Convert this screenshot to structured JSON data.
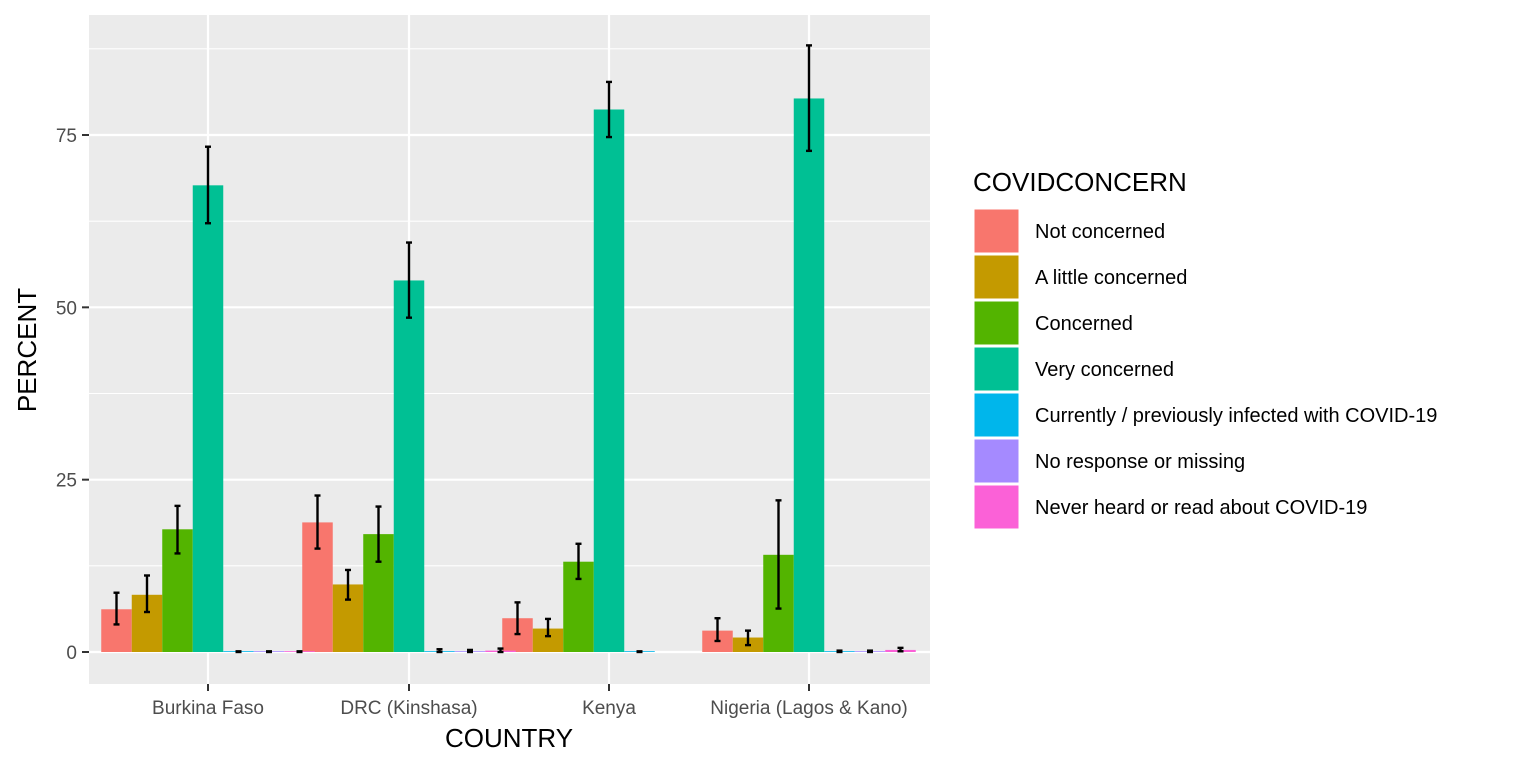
{
  "chart_data": {
    "type": "bar",
    "title": "",
    "xlabel": "COUNTRY",
    "ylabel": "PERCENT",
    "categories": [
      "Burkina Faso",
      "DRC (Kinshasa)",
      "Kenya",
      "Nigeria (Lagos & Kano)"
    ],
    "ylim": [
      -4.7,
      92
    ],
    "yticks": [
      0,
      25,
      50,
      75
    ],
    "grid": true,
    "legend": {
      "title": "COVIDCONCERN",
      "position": "right"
    },
    "series": [
      {
        "name": "Not concerned",
        "color": "#F8766D",
        "values": [
          6.2,
          18.8,
          4.9,
          3.1
        ],
        "err_low": [
          4.0,
          15.0,
          2.6,
          1.6
        ],
        "err_high": [
          8.6,
          22.7,
          7.2,
          4.9
        ]
      },
      {
        "name": "A little concerned",
        "color": "#C49A00",
        "values": [
          8.3,
          9.8,
          3.4,
          2.1
        ],
        "err_low": [
          5.8,
          7.6,
          2.3,
          1.0
        ],
        "err_high": [
          11.1,
          11.9,
          4.8,
          3.1
        ]
      },
      {
        "name": "Concerned",
        "color": "#53B400",
        "values": [
          17.8,
          17.1,
          13.1,
          14.1
        ],
        "err_low": [
          14.3,
          13.1,
          10.6,
          6.3
        ],
        "err_high": [
          21.2,
          21.1,
          15.7,
          22.0
        ]
      },
      {
        "name": "Very concerned",
        "color": "#00C094",
        "values": [
          67.7,
          53.9,
          78.7,
          80.3
        ],
        "err_low": [
          62.2,
          48.5,
          74.7,
          72.7
        ],
        "err_high": [
          73.3,
          59.4,
          82.7,
          88.0
        ]
      },
      {
        "name": "Currently / previously infected with COVID-19",
        "color": "#00B6EB",
        "values": [
          0.0,
          0.1,
          0.0,
          0.1
        ],
        "err_low": [
          0.0,
          0.0,
          0.0,
          0.0
        ],
        "err_high": [
          0.1,
          0.4,
          0.1,
          0.2
        ]
      },
      {
        "name": "No response or missing",
        "color": "#A58AFF",
        "values": [
          0.0,
          0.1,
          null,
          0.1
        ],
        "err_low": [
          0.0,
          0.0,
          null,
          0.0
        ],
        "err_high": [
          0.1,
          0.3,
          null,
          0.2
        ]
      },
      {
        "name": "Never heard or read about COVID-19",
        "color": "#FB61D7",
        "values": [
          0.0,
          0.2,
          null,
          0.3
        ],
        "err_low": [
          0.0,
          0.0,
          null,
          0.1
        ],
        "err_high": [
          0.1,
          0.5,
          null,
          0.6
        ]
      }
    ]
  },
  "colors": {
    "panel_background": "#EBEBEB",
    "grid_line": "#FFFFFF",
    "tick_text": "#4D4D4D",
    "error_bar": "#000000"
  }
}
